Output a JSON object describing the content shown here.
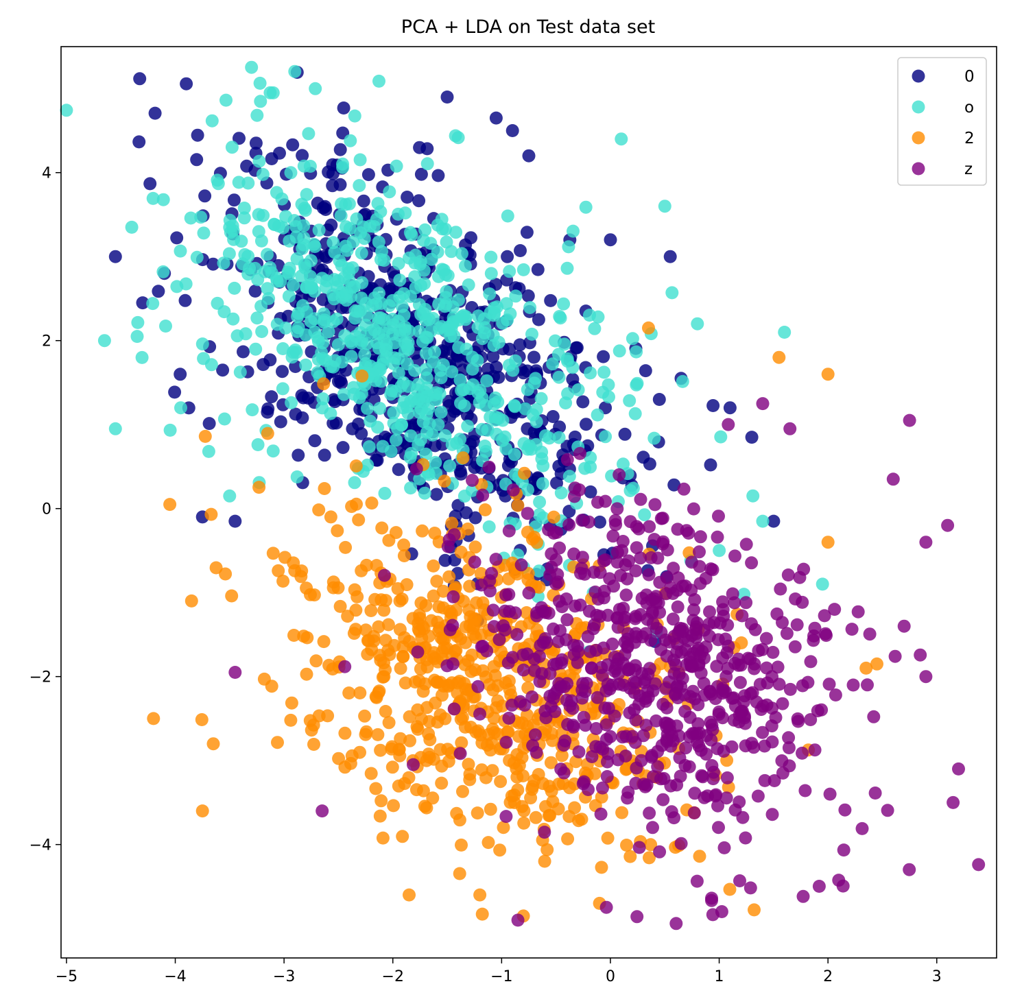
{
  "chart_data": {
    "type": "scatter",
    "title": "PCA + LDA on Test data set",
    "xlabel": "",
    "ylabel": "",
    "xlim": [
      -5.05,
      3.55
    ],
    "ylim": [
      -5.35,
      5.5
    ],
    "xticks": [
      -5,
      -4,
      -3,
      -2,
      -1,
      0,
      1,
      2,
      3
    ],
    "xtick_labels": [
      "−5",
      "−4",
      "−3",
      "−2",
      "−1",
      "0",
      "1",
      "2",
      "3"
    ],
    "yticks": [
      -4,
      -2,
      0,
      2,
      4
    ],
    "ytick_labels": [
      "−4",
      "−2",
      "0",
      "2",
      "4"
    ],
    "grid": false,
    "legend_position": "top-right",
    "series": [
      {
        "name": "0",
        "color": "#000080",
        "cluster": {
          "cx": -1.85,
          "cy": 1.85,
          "sx": 0.95,
          "sy": 1.15,
          "rho": -0.55,
          "n": 650
        },
        "outliers": [
          [
            -1.5,
            4.9
          ],
          [
            -1.05,
            4.65
          ],
          [
            -0.9,
            4.5
          ],
          [
            -0.75,
            4.2
          ],
          [
            0.0,
            3.2
          ],
          [
            0.55,
            3.0
          ],
          [
            -4.55,
            3.0
          ],
          [
            -4.3,
            2.45
          ],
          [
            -4.1,
            2.8
          ],
          [
            -3.75,
            -0.1
          ],
          [
            -3.45,
            -0.15
          ],
          [
            1.1,
            1.2
          ],
          [
            1.3,
            0.85
          ],
          [
            1.5,
            -0.15
          ],
          [
            0.65,
            1.55
          ],
          [
            0.45,
            1.3
          ]
        ]
      },
      {
        "name": "o",
        "color": "#40e0d0",
        "cluster": {
          "cx": -1.9,
          "cy": 2.0,
          "sx": 1.0,
          "sy": 1.1,
          "rho": -0.5,
          "n": 650
        },
        "outliers": [
          [
            -3.1,
            4.95
          ],
          [
            0.1,
            4.4
          ],
          [
            -4.65,
            2.0
          ],
          [
            -4.55,
            0.95
          ],
          [
            -4.4,
            3.35
          ],
          [
            -4.35,
            2.05
          ],
          [
            -3.95,
            1.2
          ],
          [
            0.5,
            3.6
          ],
          [
            0.8,
            2.2
          ],
          [
            1.6,
            2.1
          ],
          [
            1.95,
            -0.9
          ],
          [
            1.4,
            -0.15
          ],
          [
            1.0,
            -0.5
          ],
          [
            -3.5,
            0.15
          ]
        ]
      },
      {
        "name": "2",
        "color": "#ff8c00",
        "cluster": {
          "cx": -1.15,
          "cy": -2.1,
          "sx": 0.95,
          "sy": 1.0,
          "rho": -0.3,
          "n": 650
        },
        "outliers": [
          [
            -4.2,
            -2.5
          ],
          [
            -4.05,
            0.05
          ],
          [
            -3.85,
            -1.1
          ],
          [
            -3.75,
            -3.6
          ],
          [
            -3.65,
            -2.8
          ],
          [
            -0.8,
            -4.85
          ],
          [
            -0.1,
            -4.7
          ],
          [
            0.35,
            2.15
          ],
          [
            1.55,
            1.8
          ],
          [
            2.0,
            1.6
          ],
          [
            2.35,
            -1.9
          ],
          [
            2.45,
            -1.85
          ],
          [
            2.0,
            -0.4
          ],
          [
            -1.85,
            -4.6
          ],
          [
            -1.2,
            -4.6
          ]
        ]
      },
      {
        "name": "z",
        "color": "#800080",
        "cluster": {
          "cx": 0.5,
          "cy": -2.0,
          "sx": 0.85,
          "sy": 1.0,
          "rho": -0.3,
          "n": 650
        },
        "outliers": [
          [
            -0.85,
            -4.9
          ],
          [
            2.75,
            1.05
          ],
          [
            2.6,
            0.35
          ],
          [
            3.1,
            -0.2
          ],
          [
            2.9,
            -0.4
          ],
          [
            3.15,
            -3.5
          ],
          [
            3.2,
            -3.1
          ],
          [
            2.9,
            -2.0
          ],
          [
            2.7,
            -1.4
          ],
          [
            -3.45,
            -1.95
          ],
          [
            -2.65,
            -3.6
          ],
          [
            1.4,
            1.25
          ],
          [
            1.65,
            0.95
          ]
        ]
      }
    ]
  }
}
